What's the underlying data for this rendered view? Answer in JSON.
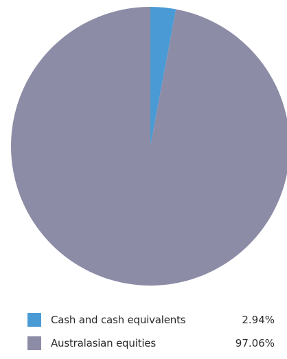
{
  "chart_data": {
    "type": "pie",
    "slices": [
      {
        "label": "Cash and cash equivalents",
        "value": 2.94,
        "value_label": "2.94%",
        "color": "#4a9ad6"
      },
      {
        "label": "Australasian equities",
        "value": 97.06,
        "value_label": "97.06%",
        "color": "#8d8ca6"
      }
    ],
    "start_angle": "12 o'clock",
    "direction": "clockwise",
    "legend_position": "bottom"
  }
}
